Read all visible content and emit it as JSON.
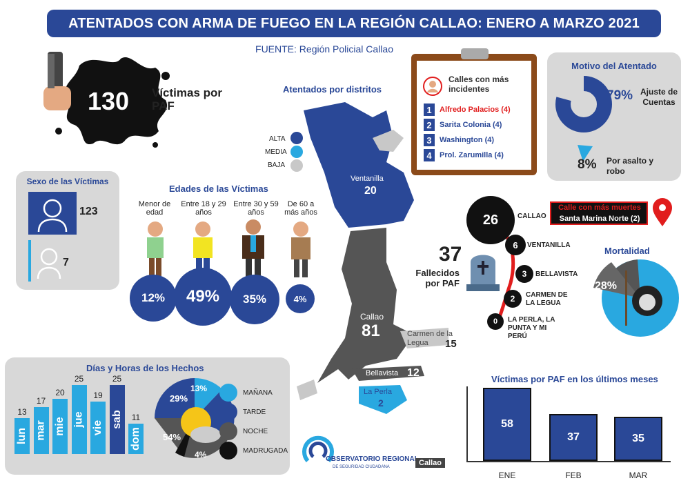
{
  "title": "ATENTADOS CON ARMA DE FUEGO EN LA REGIÓN CALLAO: ENERO A MARZO 2021",
  "source": "FUENTE: Región Policial Callao",
  "victims": {
    "count": "130",
    "label": "Víctimas por PAF"
  },
  "sexo": {
    "title": "Sexo de las Víctimas",
    "male": "123",
    "female": "7"
  },
  "edades": {
    "title": "Edades de las Víctimas",
    "groups": [
      {
        "label": "Menor de edad",
        "pct": "12%"
      },
      {
        "label": "Entre 18 y 29 años",
        "pct": "49%"
      },
      {
        "label": "Entre 30 y 59 años",
        "pct": "35%"
      },
      {
        "label": "De 60 a más años",
        "pct": "4%"
      }
    ]
  },
  "distritos": {
    "title": "Atentados por distritos",
    "legend": [
      "ALTA",
      "MEDIA",
      "BAJA"
    ],
    "items": [
      {
        "name": "Ventanilla",
        "value": "20"
      },
      {
        "name": "Callao",
        "value": "81"
      },
      {
        "name": "Carmen de la Legua",
        "value": "15"
      },
      {
        "name": "Bellavista",
        "value": "12"
      },
      {
        "name": "La Perla",
        "value": "2"
      }
    ]
  },
  "calles": {
    "title": "Calles con más incidentes",
    "items": [
      {
        "n": "1",
        "name": "Alfredo Palacios (4)"
      },
      {
        "n": "2",
        "name": "Sarita Colonia (4)"
      },
      {
        "n": "3",
        "name": "Washington (4)"
      },
      {
        "n": "4",
        "name": "Prol. Zarumilla (4)"
      }
    ]
  },
  "motivo": {
    "title": "Motivo del Atentado",
    "items": [
      {
        "pct": "79%",
        "label": "Ajuste de Cuentas"
      },
      {
        "pct": "8%",
        "label": "Por asalto y robo"
      }
    ]
  },
  "fallecidos": {
    "count": "37",
    "label": "Fallecidos por PAF",
    "street_title": "Calle con más muertes",
    "street_name": "Santa Marina Norte (2)",
    "districts": [
      {
        "value": "26",
        "name": "CALLAO"
      },
      {
        "value": "6",
        "name": "VENTANILLA"
      },
      {
        "value": "3",
        "name": "BELLAVISTA"
      },
      {
        "value": "2",
        "name": "CARMEN DE LA LEGUA"
      },
      {
        "value": "0",
        "name": "LA PERLA, LA PUNTA Y MI PERÚ"
      }
    ]
  },
  "mortalidad": {
    "title": "Mortalidad",
    "pct": "28%"
  },
  "dias": {
    "title": "Días y Horas de los Hechos",
    "days": [
      {
        "day": "lun",
        "value": "13"
      },
      {
        "day": "mar",
        "value": "17"
      },
      {
        "day": "mie",
        "value": "20"
      },
      {
        "day": "jue",
        "value": "25"
      },
      {
        "day": "vie",
        "value": "19"
      },
      {
        "day": "sab",
        "value": "25"
      },
      {
        "day": "dom",
        "value": "11"
      }
    ],
    "horas": [
      {
        "label": "MAÑANA",
        "pct": "13%",
        "color": "#29a8e0"
      },
      {
        "label": "TARDE",
        "pct": "29%",
        "color": "#2a4897"
      },
      {
        "label": "NOCHE",
        "pct": "54%",
        "color": "#555555"
      },
      {
        "label": "MADRUGADA",
        "pct": "4%",
        "color": "#111111"
      }
    ]
  },
  "logo": {
    "name": "OBSERVATORIO REGIONAL",
    "sub": "DE SEGURIDAD CIUDADANA",
    "tag": "Callao"
  },
  "chart_data": {
    "type": "bar",
    "title": "Víctimas por PAF en los últimos meses",
    "categories": [
      "ENE",
      "FEB",
      "MAR"
    ],
    "values": [
      58,
      37,
      35
    ]
  },
  "colors": {
    "brand": "#2a4897",
    "accent": "#29a8e0",
    "red": "#e11d1d"
  }
}
